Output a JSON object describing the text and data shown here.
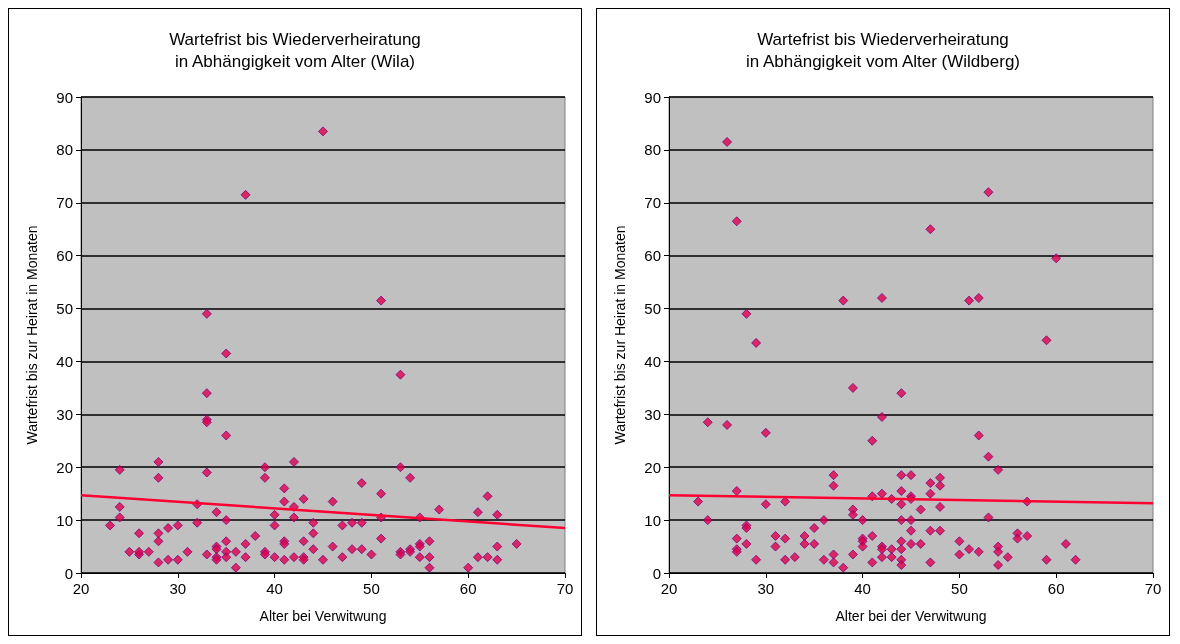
{
  "chart_data": [
    {
      "type": "scatter",
      "title": "Wartefrist bis Wiederverheiratung\nin Abhängigkeit vom Alter (Wila)",
      "xlabel": "Alter bei Verwitwung",
      "ylabel": "Wartefrist bis zur Heirat in Monaten",
      "xlim": [
        20,
        70
      ],
      "xticks": [
        20,
        30,
        40,
        50,
        60,
        70
      ],
      "ylim": [
        0,
        90
      ],
      "yticks": [
        0,
        10,
        20,
        30,
        40,
        50,
        60,
        70,
        80,
        90
      ],
      "grid": "y",
      "series": [
        {
          "color": "#e0004a",
          "marker": "diamond",
          "x": [
            23,
            24,
            24,
            24,
            25,
            26,
            26,
            26,
            27,
            28,
            28,
            28,
            28,
            28,
            29,
            29,
            30,
            30,
            31,
            32,
            32,
            33,
            33,
            33,
            33,
            33,
            33,
            34,
            34,
            34,
            34,
            34,
            35,
            35,
            35,
            35,
            35,
            35,
            36,
            36,
            37,
            37,
            37,
            38,
            39,
            39,
            39,
            39,
            40,
            40,
            40,
            41,
            41,
            41,
            41,
            41,
            42,
            42,
            42,
            42,
            43,
            43,
            43,
            43,
            44,
            44,
            44,
            45,
            45,
            46,
            46,
            47,
            47,
            48,
            48,
            49,
            49,
            49,
            50,
            51,
            51,
            51,
            51,
            53,
            53,
            53,
            53,
            54,
            54,
            54,
            55,
            55,
            55,
            55,
            56,
            56,
            56,
            57,
            60,
            61,
            61,
            62,
            62,
            63,
            63,
            63,
            65
          ],
          "values": [
            9,
            19.5,
            12.5,
            10.5,
            4,
            7.5,
            3.5,
            4,
            4,
            21,
            18,
            7.5,
            6,
            2,
            8.5,
            2.5,
            9,
            2.5,
            4,
            13,
            9.5,
            49,
            34,
            29,
            28.5,
            19,
            3.5,
            11.5,
            5,
            3,
            2.5,
            4.5,
            41.5,
            26,
            10,
            6,
            4,
            3,
            1,
            4,
            71.5,
            5.5,
            3,
            7,
            20,
            18,
            4,
            3.5,
            3,
            11,
            9,
            16,
            13.5,
            6,
            5.5,
            2.5,
            21,
            12.5,
            10.5,
            3,
            14,
            6,
            3,
            2.5,
            7.5,
            9.5,
            4.5,
            83.5,
            2.5,
            13.5,
            5,
            9,
            3,
            9.5,
            4.5,
            17,
            9.5,
            4.5,
            3.5,
            51.5,
            15,
            10.5,
            6.5,
            37.5,
            20,
            4,
            3.5,
            18,
            4.5,
            4,
            10.5,
            5.5,
            3,
            5,
            6,
            1,
            3,
            12,
            1,
            11.5,
            3,
            14.5,
            3,
            11,
            5,
            2.5,
            5.5
          ]
        },
        {
          "type": "line",
          "color": "#ff0033",
          "marker": "none",
          "line_style": "solid",
          "x": [
            20,
            70
          ],
          "values": [
            14.7,
            8.5
          ]
        }
      ]
    },
    {
      "type": "scatter",
      "title": "Wartefrist bis Wiederverheiratung\nin Abhängigkeit vom Alter (Wildberg)",
      "xlabel": "Alter bei der Verwitwung",
      "ylabel": "Wartefrist bis zur Heirat in Monaten",
      "xlim": [
        20,
        70
      ],
      "xticks": [
        20,
        30,
        40,
        50,
        60,
        70
      ],
      "ylim": [
        0,
        90
      ],
      "yticks": [
        0,
        10,
        20,
        30,
        40,
        50,
        60,
        70,
        80,
        90
      ],
      "grid": "y",
      "series": [
        {
          "color": "#e0004a",
          "marker": "diamond",
          "x": [
            23,
            24,
            24,
            26,
            26,
            27,
            27,
            27,
            27,
            27,
            28,
            28,
            28,
            28,
            29,
            29,
            30,
            30,
            31,
            31,
            32,
            32,
            32,
            33,
            34,
            34,
            35,
            35,
            36,
            36,
            37,
            37,
            37,
            37,
            38,
            38,
            39,
            39,
            39,
            39,
            40,
            40,
            40,
            40,
            41,
            41,
            41,
            41,
            42,
            42,
            42,
            42,
            42,
            42,
            43,
            43,
            43,
            44,
            44,
            44,
            44,
            44,
            44,
            44,
            44,
            44,
            45,
            45,
            45,
            45,
            45,
            45,
            46,
            46,
            47,
            47,
            47,
            47,
            47,
            48,
            48,
            48,
            48,
            50,
            50,
            51,
            51,
            52,
            52,
            52,
            53,
            53,
            53,
            54,
            54,
            54,
            54,
            55,
            56,
            56,
            57,
            57,
            59,
            59,
            60,
            61,
            62
          ],
          "values": [
            13.5,
            28.5,
            10,
            81.5,
            28,
            66.5,
            15.5,
            6.5,
            4.5,
            4,
            49,
            9,
            8.5,
            5.5,
            43.5,
            2.5,
            26.5,
            13,
            7,
            5,
            13.5,
            6.5,
            2.5,
            3,
            7,
            5.5,
            8.5,
            5.5,
            10,
            2.5,
            18.5,
            16.5,
            3.5,
            2,
            51.5,
            1,
            35,
            12,
            11,
            3.5,
            10,
            6.5,
            6,
            5,
            25,
            14.5,
            7,
            2,
            52,
            29.5,
            15,
            5,
            4.5,
            3,
            14,
            4.5,
            3,
            34,
            18.5,
            15.5,
            13,
            10,
            6,
            4.5,
            2.5,
            1.5,
            18.5,
            14.5,
            14,
            10,
            8,
            5.5,
            12,
            5.5,
            65,
            17,
            15,
            8,
            2,
            18,
            16.5,
            12.5,
            8,
            6,
            3.5,
            51.5,
            4.5,
            52,
            26,
            4,
            72,
            22,
            10.5,
            19.5,
            5,
            4,
            1.5,
            3,
            7.5,
            6.5,
            13.5,
            7,
            44,
            2.5,
            59.5,
            5.5,
            2.5
          ]
        },
        {
          "type": "line",
          "color": "#ff0033",
          "marker": "none",
          "line_style": "solid",
          "x": [
            20,
            70
          ],
          "values": [
            14.7,
            13.2
          ]
        }
      ]
    }
  ]
}
